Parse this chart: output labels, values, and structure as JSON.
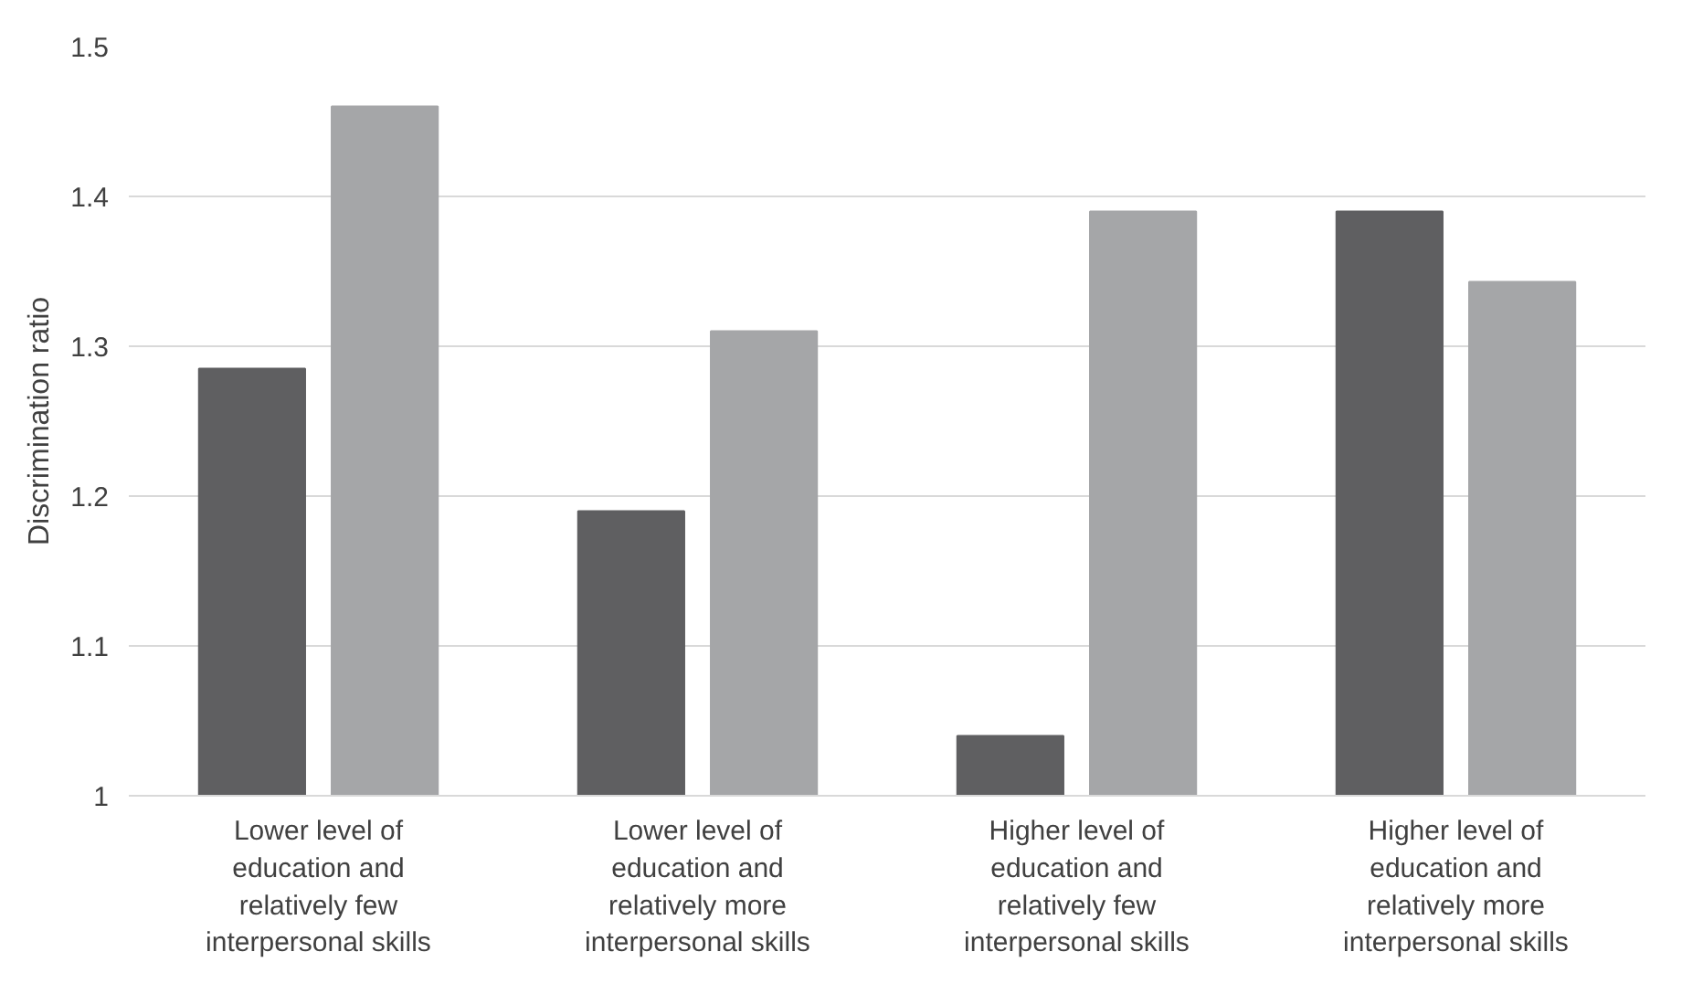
{
  "chart_data": {
    "type": "bar",
    "ylabel": "Discrimination ratio",
    "categories": [
      "Lower level of education and relatively few interpersonal skills",
      "Lower level of education and relatively more interpersonal skills",
      "Higher level of education and relatively few interpersonal skills",
      "Higher level of education and relatively more interpersonal skills"
    ],
    "series": [
      {
        "color": "#5f5f61",
        "values": [
          1.285,
          1.19,
          1.04,
          1.39
        ]
      },
      {
        "color": "#a5a6a8",
        "values": [
          1.46,
          1.31,
          1.39,
          1.343
        ]
      }
    ],
    "ylim": [
      1,
      1.5
    ],
    "yticks": [
      1,
      1.1,
      1.2,
      1.3,
      1.4,
      1.5
    ],
    "grid": "y"
  }
}
